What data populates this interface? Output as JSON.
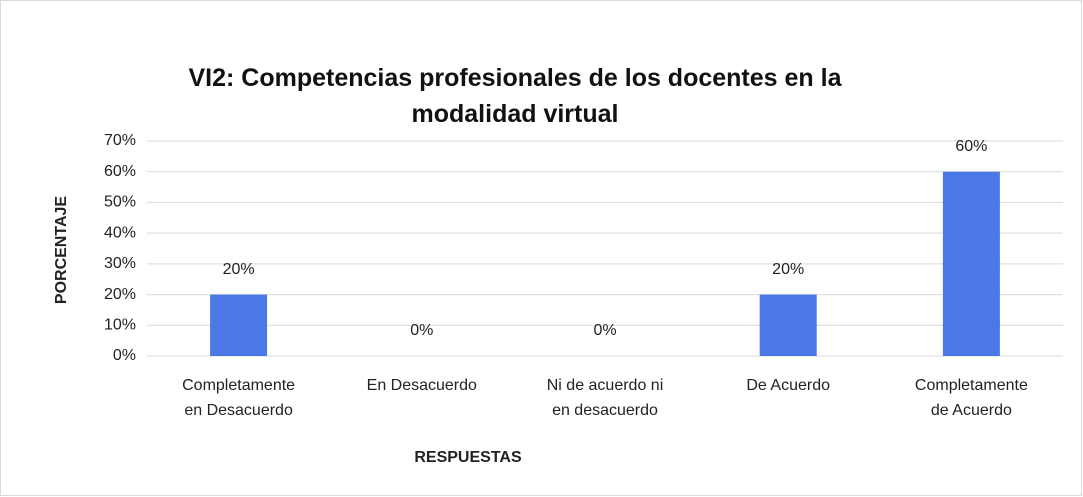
{
  "chart_data": {
    "type": "bar",
    "title": "VI2: Competencias profesionales de los docentes en la\nmodalidad virtual",
    "x_label": "RESPUESTAS",
    "y_label": "PORCENTAJE",
    "categories": [
      "Completamente\nen Desacuerdo",
      "En Desacuerdo",
      "Ni de acuerdo ni\nen desacuerdo",
      "De Acuerdo",
      "Completamente\nde Acuerdo"
    ],
    "values": [
      20,
      0,
      0,
      20,
      60
    ],
    "value_labels": [
      "20%",
      "0%",
      "0%",
      "20%",
      "60%"
    ],
    "color": "#4a78e6",
    "ylim": [
      0,
      70
    ],
    "yticks": [
      {
        "value": 0,
        "label": "0%"
      },
      {
        "value": 10,
        "label": "10%"
      },
      {
        "value": 20,
        "label": "20%"
      },
      {
        "value": 30,
        "label": "30%"
      },
      {
        "value": 40,
        "label": "40%"
      },
      {
        "value": 50,
        "label": "50%"
      },
      {
        "value": 60,
        "label": "60%"
      },
      {
        "value": 70,
        "label": "70%"
      }
    ],
    "grid": true
  }
}
